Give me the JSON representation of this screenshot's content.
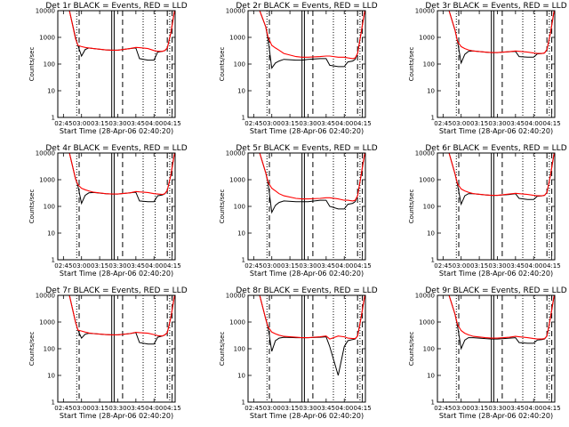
{
  "chart_data": {
    "type": "line",
    "layout": "3x3 grid",
    "xlabel": "Start Time (28-Apr-06 02:40:20)",
    "ylabel": "Counts/sec",
    "xlim": [
      "02:40:20",
      "04:17:30"
    ],
    "x_ticks": [
      "02:45",
      "03:00",
      "03:15",
      "03:30",
      "03:45",
      "04:00",
      "04:15"
    ],
    "ylim": [
      1,
      10000
    ],
    "y_scale": "log",
    "y_ticks": [
      "1",
      "10",
      "100",
      "1000",
      "10000"
    ],
    "series_colors": {
      "events": "#000000",
      "lld": "#ff0000"
    },
    "x": [
      "02:40",
      "02:50",
      "02:55",
      "02:57",
      "03:00",
      "03:03",
      "03:06",
      "03:10",
      "03:20",
      "03:25",
      "03:30",
      "03:40",
      "03:45",
      "03:48",
      "03:55",
      "04:00",
      "04:03",
      "04:07",
      "04:09",
      "04:11",
      "04:14",
      "04:17"
    ],
    "vertical_markers": {
      "dotted": [
        "02:56",
        "03:51",
        "04:01",
        "04:13"
      ],
      "dashed": [
        "02:58",
        "03:34",
        "04:11",
        "04:15"
      ],
      "solid": [
        "03:25",
        "03:27"
      ]
    },
    "panels": [
      {
        "title": "Det 1r BLACK = Events, RED = LLD",
        "events": [
          10000,
          10000,
          1000,
          500,
          200,
          350,
          400,
          380,
          340,
          330,
          330,
          380,
          400,
          160,
          140,
          140,
          280,
          300,
          320,
          400,
          1500,
          10000
        ],
        "lld": [
          10000,
          10000,
          900,
          500,
          450,
          420,
          400,
          380,
          340,
          330,
          330,
          380,
          420,
          410,
          380,
          320,
          300,
          300,
          320,
          400,
          1500,
          10000
        ]
      },
      {
        "title": "Det 2r BLACK = Events, RED = LLD",
        "events": [
          10000,
          10000,
          2500,
          800,
          70,
          110,
          130,
          150,
          140,
          140,
          150,
          160,
          160,
          90,
          80,
          80,
          120,
          130,
          150,
          250,
          1500,
          10000
        ],
        "lld": [
          10000,
          10000,
          2500,
          1000,
          500,
          400,
          330,
          250,
          190,
          180,
          180,
          190,
          200,
          200,
          180,
          180,
          170,
          160,
          170,
          250,
          1500,
          10000
        ]
      },
      {
        "title": "Det 3r BLACK = Events, RED = LLD",
        "events": [
          10000,
          10000,
          1800,
          700,
          110,
          230,
          300,
          310,
          280,
          270,
          270,
          290,
          300,
          190,
          180,
          180,
          240,
          250,
          260,
          350,
          1500,
          10000
        ],
        "lld": [
          10000,
          10000,
          1800,
          700,
          450,
          380,
          340,
          310,
          280,
          270,
          270,
          290,
          310,
          300,
          280,
          260,
          250,
          250,
          260,
          350,
          1500,
          10000
        ]
      },
      {
        "title": "Det 4r BLACK = Events, RED = LLD",
        "events": [
          10000,
          10000,
          1100,
          600,
          130,
          260,
          320,
          330,
          300,
          290,
          290,
          320,
          340,
          160,
          150,
          150,
          250,
          270,
          300,
          400,
          1500,
          10000
        ],
        "lld": [
          10000,
          10000,
          1100,
          650,
          480,
          420,
          380,
          340,
          300,
          290,
          290,
          320,
          360,
          350,
          330,
          300,
          290,
          280,
          300,
          400,
          1500,
          10000
        ]
      },
      {
        "title": "Det 5r BLACK = Events, RED = LLD",
        "events": [
          10000,
          10000,
          1800,
          700,
          60,
          110,
          140,
          160,
          150,
          150,
          150,
          170,
          170,
          100,
          80,
          80,
          120,
          130,
          150,
          250,
          1500,
          10000
        ],
        "lld": [
          10000,
          10000,
          1800,
          800,
          480,
          380,
          300,
          250,
          200,
          190,
          190,
          200,
          210,
          210,
          190,
          170,
          170,
          160,
          170,
          250,
          1500,
          10000
        ]
      },
      {
        "title": "Det 6r BLACK = Events, RED = LLD",
        "events": [
          10000,
          10000,
          1600,
          650,
          120,
          250,
          300,
          300,
          270,
          260,
          260,
          280,
          300,
          200,
          180,
          180,
          240,
          250,
          260,
          330,
          1500,
          10000
        ],
        "lld": [
          10000,
          10000,
          1600,
          700,
          450,
          380,
          340,
          300,
          270,
          260,
          260,
          290,
          310,
          300,
          280,
          260,
          250,
          250,
          260,
          330,
          1500,
          10000
        ]
      },
      {
        "title": "Det 7r BLACK = Events, RED = LLD",
        "events": [
          10000,
          10000,
          1000,
          500,
          250,
          350,
          380,
          370,
          340,
          330,
          330,
          370,
          400,
          170,
          150,
          150,
          270,
          300,
          330,
          400,
          1500,
          10000
        ],
        "lld": [
          10000,
          10000,
          1000,
          500,
          460,
          420,
          390,
          370,
          340,
          330,
          330,
          370,
          410,
          400,
          380,
          340,
          310,
          300,
          330,
          400,
          1500,
          10000
        ]
      },
      {
        "title": "Det 8r BLACK = Events, RED = LLD",
        "events": [
          10000,
          10000,
          1300,
          600,
          80,
          200,
          250,
          270,
          260,
          260,
          260,
          270,
          280,
          120,
          10,
          120,
          200,
          220,
          230,
          300,
          1500,
          10000
        ],
        "lld": [
          10000,
          10000,
          1300,
          650,
          420,
          360,
          320,
          290,
          270,
          260,
          260,
          280,
          300,
          230,
          300,
          280,
          250,
          240,
          240,
          300,
          1500,
          10000
        ]
      },
      {
        "title": "Det 9r BLACK = Events, RED = LLD",
        "events": [
          10000,
          10000,
          1900,
          700,
          100,
          210,
          260,
          260,
          240,
          230,
          230,
          250,
          260,
          170,
          160,
          160,
          210,
          220,
          230,
          300,
          1500,
          10000
        ],
        "lld": [
          10000,
          10000,
          1900,
          800,
          480,
          380,
          330,
          290,
          260,
          250,
          250,
          270,
          290,
          280,
          260,
          240,
          230,
          230,
          240,
          300,
          1500,
          10000
        ]
      }
    ]
  }
}
